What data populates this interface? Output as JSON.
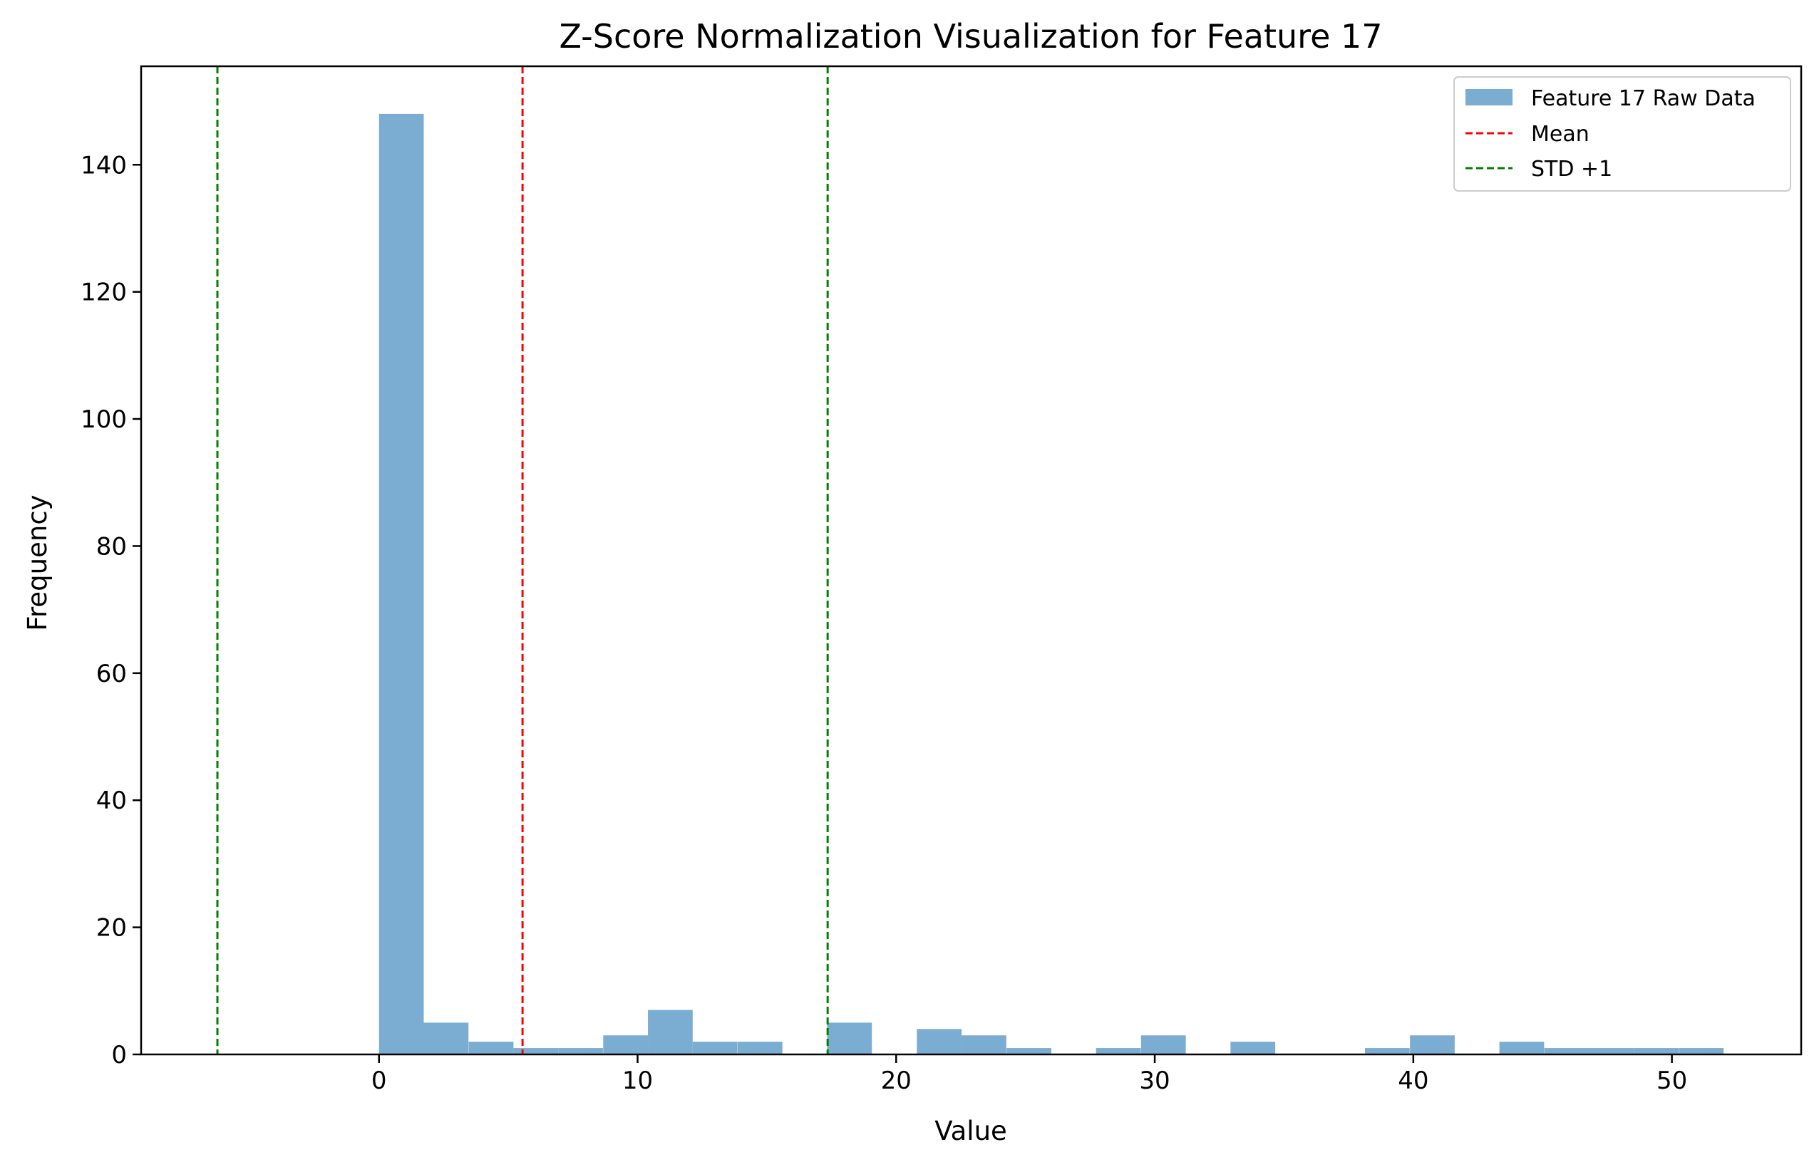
{
  "chart_data": {
    "type": "bar",
    "title": "Z-Score Normalization Visualization for Feature 17",
    "xlabel": "Value",
    "ylabel": "Frequency",
    "xlim": [
      -9.2,
      55
    ],
    "ylim": [
      0,
      155.5
    ],
    "xticks": [
      0,
      10,
      20,
      30,
      40,
      50
    ],
    "yticks": [
      0,
      20,
      40,
      60,
      80,
      100,
      120,
      140
    ],
    "grid": false,
    "legend_position": "top-right",
    "series": [
      {
        "name": "Feature 17 Raw Data",
        "kind": "histogram",
        "color": "#7aadd1",
        "bin_width": 1.73,
        "bins_start": [
          0,
          1.73,
          3.47,
          5.2,
          6.93,
          8.67,
          10.4,
          12.13,
          13.87,
          15.6,
          17.33,
          19.07,
          20.8,
          22.53,
          24.27,
          26.0,
          27.73,
          29.47,
          31.2,
          32.93,
          34.67,
          36.4,
          38.13,
          39.87,
          41.6,
          43.33,
          45.07,
          46.8,
          48.53,
          50.27
        ],
        "counts": [
          148,
          5,
          2,
          1,
          1,
          3,
          7,
          2,
          2,
          0,
          5,
          0,
          4,
          3,
          1,
          0,
          1,
          3,
          0,
          2,
          0,
          0,
          1,
          3,
          0,
          2,
          1,
          1,
          1,
          1
        ]
      },
      {
        "name": "Mean",
        "kind": "vline",
        "x": 5.55,
        "color": "#ff0000",
        "style": "dashed"
      },
      {
        "name": "STD +1",
        "kind": "vline",
        "x": 17.35,
        "color": "#008000",
        "style": "dashed"
      },
      {
        "name": "",
        "kind": "vline",
        "x": -6.25,
        "color": "#008000",
        "style": "dashed"
      }
    ],
    "legend": [
      "Feature 17 Raw Data",
      "Mean",
      "STD +1"
    ]
  }
}
